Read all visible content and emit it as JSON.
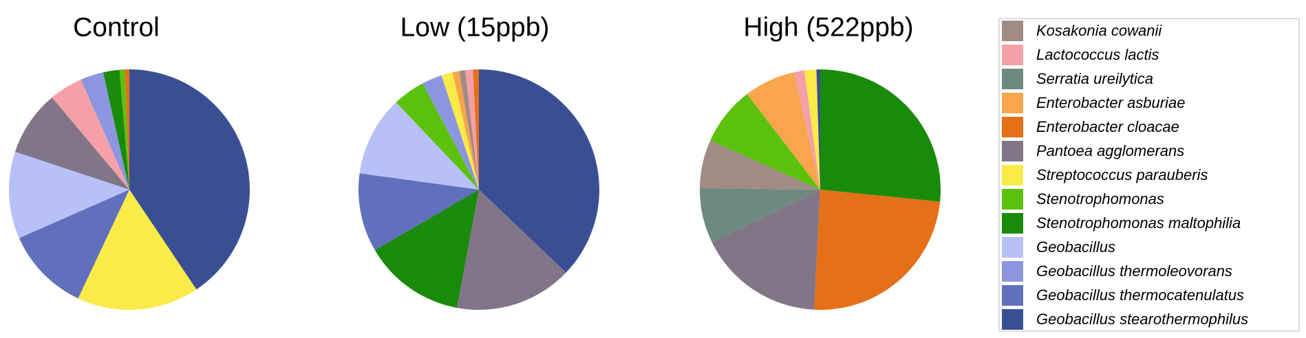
{
  "chart_data": [
    {
      "type": "pie",
      "title": "Control",
      "categories": [
        "Geobacillus stearothermophilus",
        "Streptococcus parauberis",
        "Geobacillus thermocatenulatus",
        "Geobacillus",
        "Pantoea agglomerans",
        "Lactococcus lactis",
        "Geobacillus thermoleovorans",
        "Stenotrophomonas maltophilia",
        "Stenotrophomonas",
        "Enterobacter cloacae"
      ],
      "values": [
        40.6,
        16.4,
        11.4,
        11.7,
        8.8,
        4.5,
        3.1,
        2.2,
        0.7,
        0.6
      ]
    },
    {
      "type": "pie",
      "title": "Low (15ppb)",
      "categories": [
        "Geobacillus stearothermophilus",
        "Pantoea agglomerans",
        "Stenotrophomonas maltophilia",
        "Geobacillus thermocatenulatus",
        "Geobacillus",
        "Stenotrophomonas",
        "Geobacillus thermoleovorans",
        "Streptococcus parauberis",
        "Enterobacter asburiae",
        "Kosakonia cowanii",
        "Lactococcus lactis",
        "Enterobacter cloacae"
      ],
      "values": [
        36.9,
        15.7,
        13.6,
        10.5,
        10.7,
        4.3,
        2.7,
        1.5,
        0.9,
        0.8,
        1.0,
        0.8
      ]
    },
    {
      "type": "pie",
      "title": "High (522ppb)",
      "categories": [
        "Stenotrophomonas maltophilia",
        "Enterobacter cloacae",
        "Pantoea agglomerans",
        "Serratia ureilytica",
        "Kosakonia cowanii",
        "Stenotrophomonas",
        "Enterobacter asburiae",
        "Lactococcus lactis",
        "Streptococcus parauberis",
        "Geobacillus stearothermophilus"
      ],
      "values": [
        26.6,
        24.2,
        17.0,
        7.4,
        6.5,
        7.9,
        6.9,
        1.4,
        1.6,
        0.5
      ]
    }
  ],
  "legend": {
    "items": [
      {
        "name": "Kosakonia cowanii",
        "color": "#a08c84"
      },
      {
        "name": "Lactococcus lactis",
        "color": "#f5a0a8"
      },
      {
        "name": "Serratia ureilytica",
        "color": "#6e8a80"
      },
      {
        "name": "Enterobacter asburiae",
        "color": "#f8a54c"
      },
      {
        "name": "Enterobacter cloacae",
        "color": "#e57018"
      },
      {
        "name": "Pantoea agglomerans",
        "color": "#827588"
      },
      {
        "name": "Streptococcus parauberis",
        "color": "#faeb48"
      },
      {
        "name": "Stenotrophomonas",
        "color": "#5cc10c"
      },
      {
        "name": "Stenotrophomonas maltophilia",
        "color": "#1a8a0a"
      },
      {
        "name": "Geobacillus",
        "color": "#b8c0f8"
      },
      {
        "name": "Geobacillus thermoleovorans",
        "color": "#8c96e0"
      },
      {
        "name": "Geobacillus thermocatenulatus",
        "color": "#6070bc"
      },
      {
        "name": "Geobacillus stearothermophilus",
        "color": "#3a4f93"
      }
    ]
  }
}
